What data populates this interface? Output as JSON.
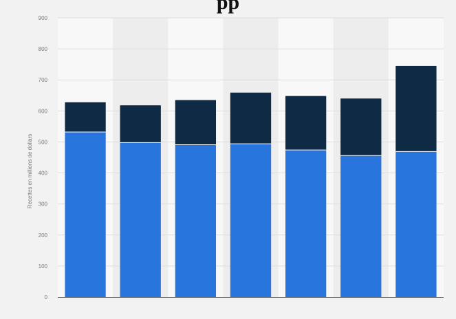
{
  "header": {
    "title_fragment": "pp"
  },
  "chart_data": {
    "type": "bar",
    "stacked": true,
    "categories": [
      "",
      "",
      "",
      "",
      "",
      "",
      ""
    ],
    "series": [
      {
        "values": [
          532,
          498,
          491,
          494,
          474,
          456,
          469
        ]
      },
      {
        "values": [
          96,
          120,
          144,
          165,
          174,
          184,
          276
        ]
      }
    ],
    "ylabel": "Recettes en millions de dollars",
    "ylim": [
      0,
      900
    ],
    "yticks": [
      0,
      100,
      200,
      300,
      400,
      500,
      600,
      700,
      800,
      900
    ],
    "grid": true,
    "legend": "none",
    "colors": {
      "series": [
        "#2876dd",
        "#0f2a44"
      ],
      "grid": "#dddddd",
      "band_light": "#f8f8f8",
      "band_dark": "#ededed",
      "axis": "#555555"
    }
  }
}
